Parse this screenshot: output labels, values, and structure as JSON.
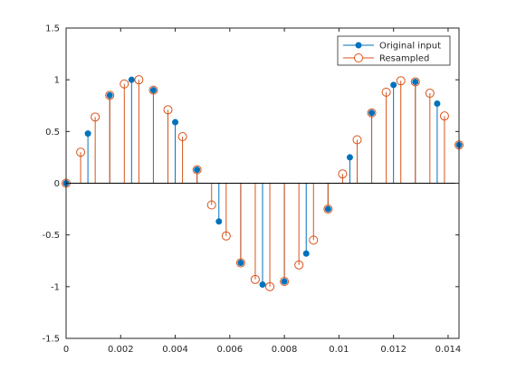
{
  "chart_data": {
    "type": "stem",
    "title": "",
    "xlabel": "",
    "ylabel": "",
    "xlim": [
      0,
      0.0144
    ],
    "ylim": [
      -1.5,
      1.5
    ],
    "grid": false,
    "legend_location": "top-right",
    "xticks": [
      0,
      0.002,
      0.004,
      0.006,
      0.008,
      0.01,
      0.012,
      0.014
    ],
    "xtick_labels": [
      "0",
      "0.002",
      "0.004",
      "0.006",
      "0.008",
      "0.01",
      "0.012",
      "0.014"
    ],
    "yticks": [
      1.5,
      1,
      0.5,
      0,
      -0.5,
      -1,
      -1.5
    ],
    "ytick_labels": [
      "1.5",
      "1",
      "0.5",
      "0",
      "-0.5",
      "-1",
      "-1.5"
    ],
    "series": [
      {
        "name": "Original input",
        "color": "#0072BD",
        "marker": "filled-circle",
        "x": [
          0,
          0.0008,
          0.0016,
          0.0024,
          0.0032,
          0.004,
          0.0048,
          0.0056,
          0.0064,
          0.0072,
          0.008,
          0.0088,
          0.0096,
          0.0104,
          0.0112,
          0.012,
          0.0128,
          0.0136,
          0.0144
        ],
        "y": [
          0,
          0.48,
          0.85,
          1.0,
          0.9,
          0.59,
          0.13,
          -0.37,
          -0.77,
          -0.98,
          -0.95,
          -0.68,
          -0.25,
          0.25,
          0.68,
          0.95,
          0.98,
          0.77,
          0.37
        ]
      },
      {
        "name": "Resampled",
        "color": "#D95319",
        "marker": "open-circle",
        "x": [
          0,
          0.000533,
          0.001067,
          0.0016,
          0.002133,
          0.002667,
          0.0032,
          0.003733,
          0.004267,
          0.0048,
          0.005333,
          0.005867,
          0.0064,
          0.006933,
          0.007467,
          0.008,
          0.008533,
          0.009067,
          0.0096,
          0.010133,
          0.010667,
          0.0112,
          0.011733,
          0.012267,
          0.0128,
          0.013333,
          0.013867,
          0.0144
        ],
        "y": [
          0,
          0.3,
          0.64,
          0.85,
          0.96,
          1.0,
          0.9,
          0.71,
          0.45,
          0.13,
          -0.21,
          -0.51,
          -0.77,
          -0.93,
          -1.0,
          -0.95,
          -0.79,
          -0.55,
          -0.25,
          0.09,
          0.42,
          0.68,
          0.88,
          0.99,
          0.98,
          0.87,
          0.65,
          0.37
        ]
      }
    ]
  }
}
